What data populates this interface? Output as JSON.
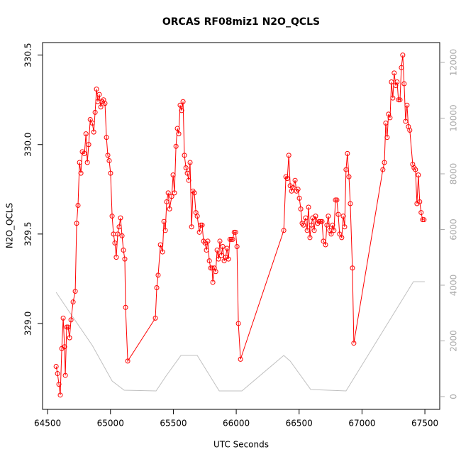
{
  "chart_data": {
    "type": "line",
    "title": "ORCAS RF08miz1 N2O_QCLS",
    "xlabel": "UTC Seconds",
    "ylabel": "N2O_QCLS",
    "xlim": [
      64460,
      67618
    ],
    "ylim": [
      328.52,
      330.57
    ],
    "y2lim": [
      -459,
      12713
    ],
    "xticks": [
      64500,
      65000,
      65500,
      66000,
      66500,
      67000,
      67500
    ],
    "yticks": [
      {
        "value": 329,
        "label": "329.0"
      },
      329.5,
      {
        "value": 330,
        "label": "330.0"
      },
      330.5
    ],
    "y2ticks": [
      0,
      2000,
      4000,
      6000,
      8000,
      10000,
      12000
    ],
    "series": [
      {
        "color": "#ff0000",
        "markers": true,
        "axis": "y",
        "x": [
          64568,
          64579,
          64590,
          64601,
          64613,
          64624,
          64635,
          64641,
          64652,
          64663,
          64675,
          64686,
          64703,
          64720,
          64731,
          64742,
          64754,
          64765,
          64776,
          64793,
          64805,
          64816,
          64827,
          64839,
          64856,
          64867,
          64878,
          64889,
          64900,
          64911,
          64923,
          64934,
          64945,
          64956,
          64968,
          64979,
          64990,
          65001,
          65013,
          65024,
          65035,
          65046,
          65058,
          65069,
          65080,
          65092,
          65103,
          65114,
          65120,
          65137,
          65357,
          65368,
          65379,
          65397,
          65414,
          65425,
          65436,
          65447,
          65459,
          65470,
          65487,
          65498,
          65509,
          65521,
          65532,
          65543,
          65554,
          65566,
          65577,
          65588,
          65600,
          65611,
          65622,
          65633,
          65645,
          65656,
          65667,
          65679,
          65690,
          65707,
          65718,
          65729,
          65740,
          65752,
          65763,
          65774,
          65786,
          65797,
          65808,
          65814,
          65825,
          65837,
          65848,
          65859,
          65870,
          65882,
          65893,
          65904,
          65916,
          65927,
          65938,
          65950,
          65961,
          65972,
          65984,
          65995,
          66006,
          66017,
          66034,
          66378,
          66395,
          66406,
          66418,
          66429,
          66440,
          66451,
          66468,
          66479,
          66491,
          66502,
          66513,
          66524,
          66535,
          66552,
          66564,
          66575,
          66586,
          66597,
          66608,
          66620,
          66631,
          66648,
          66659,
          66671,
          66682,
          66693,
          66710,
          66721,
          66732,
          66744,
          66755,
          66766,
          66777,
          66789,
          66800,
          66811,
          66822,
          66839,
          66851,
          66862,
          66873,
          66884,
          66896,
          66907,
          66924,
          66935,
          67166,
          67178,
          67189,
          67200,
          67211,
          67223,
          67234,
          67245,
          67256,
          67268,
          67279,
          67290,
          67302,
          67313,
          67324,
          67335,
          67347,
          67358,
          67369,
          67380,
          67403,
          67414,
          67425,
          67437,
          67448,
          67459,
          67470,
          67482,
          67493
        ],
        "values": [
          328.76,
          328.72,
          328.66,
          328.6,
          328.86,
          329.03,
          328.87,
          328.71,
          328.98,
          328.98,
          328.92,
          329.02,
          329.12,
          329.18,
          329.56,
          329.66,
          329.9,
          329.84,
          329.96,
          329.95,
          330.06,
          329.9,
          330.0,
          330.14,
          330.12,
          330.07,
          330.18,
          330.31,
          330.24,
          330.28,
          330.21,
          330.24,
          330.25,
          330.23,
          330.04,
          329.94,
          329.91,
          329.84,
          329.6,
          329.5,
          329.45,
          329.37,
          329.5,
          329.54,
          329.59,
          329.49,
          329.41,
          329.36,
          329.09,
          328.79,
          329.03,
          329.2,
          329.27,
          329.44,
          329.4,
          329.57,
          329.52,
          329.68,
          329.73,
          329.64,
          329.71,
          329.83,
          329.73,
          329.99,
          330.09,
          330.06,
          330.22,
          330.19,
          330.24,
          329.94,
          329.87,
          329.84,
          329.8,
          329.9,
          329.54,
          329.74,
          329.73,
          329.62,
          329.6,
          329.51,
          329.55,
          329.55,
          329.46,
          329.45,
          329.41,
          329.46,
          329.35,
          329.31,
          329.31,
          329.23,
          329.31,
          329.29,
          329.41,
          329.36,
          329.46,
          329.38,
          329.43,
          329.35,
          329.37,
          329.42,
          329.36,
          329.47,
          329.47,
          329.47,
          329.51,
          329.51,
          329.43,
          329.0,
          328.8,
          329.52,
          329.82,
          329.81,
          329.94,
          329.77,
          329.74,
          329.76,
          329.8,
          329.74,
          329.75,
          329.7,
          329.64,
          329.56,
          329.55,
          329.59,
          329.52,
          329.65,
          329.48,
          329.55,
          329.59,
          329.52,
          329.6,
          329.56,
          329.57,
          329.57,
          329.57,
          329.46,
          329.44,
          329.55,
          329.6,
          329.52,
          329.5,
          329.55,
          329.52,
          329.69,
          329.69,
          329.61,
          329.5,
          329.48,
          329.6,
          329.54,
          329.86,
          329.95,
          329.82,
          329.67,
          329.31,
          328.89,
          329.86,
          329.9,
          330.12,
          330.04,
          330.17,
          330.15,
          330.35,
          330.26,
          330.4,
          330.33,
          330.35,
          330.25,
          330.25,
          330.43,
          330.5,
          330.34,
          330.13,
          330.22,
          330.1,
          330.08,
          329.89,
          329.87,
          329.86,
          329.67,
          329.83,
          329.68,
          329.62,
          329.58,
          329.58
        ]
      },
      {
        "color": "#c0c0c0",
        "markers": false,
        "axis": "y2",
        "x": [
          64568,
          64686,
          64856,
          65013,
          65109,
          65363,
          65442,
          65560,
          65690,
          65865,
          66045,
          66378,
          66429,
          66592,
          66873,
          67409,
          67437,
          67499
        ],
        "values": [
          3745,
          2955,
          1834,
          560,
          229,
          204,
          739,
          1478,
          1478,
          204,
          204,
          1478,
          1274,
          255,
          204,
          4127,
          4127,
          4127
        ]
      }
    ]
  }
}
